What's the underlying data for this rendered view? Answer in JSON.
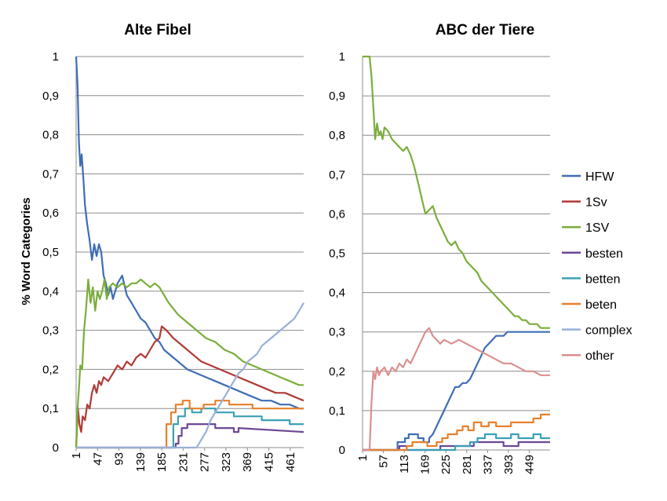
{
  "colors": {
    "HFW": "#3f6db5",
    "1Sv": "#b03a36",
    "1SV": "#7aae3a",
    "besten": "#6c4796",
    "betten": "#3ba0b5",
    "beten": "#e8802b",
    "complex": "#98b0d9",
    "other": "#dc8e8e"
  },
  "legend": [
    "HFW",
    "1Sv",
    "1SV",
    "besten",
    "betten",
    "beten",
    "complex",
    "other"
  ],
  "chart_data": [
    {
      "type": "line",
      "title": "Alte Fibel",
      "ylabel": "% Word Categories",
      "xlabel": "",
      "xlim": [
        1,
        490
      ],
      "ylim": [
        0,
        1
      ],
      "yticks": [
        "0",
        "0,1",
        "0,2",
        "0,3",
        "0,4",
        "0,5",
        "0,6",
        "0,7",
        "0,8",
        "0,9",
        "1"
      ],
      "xticks": [
        "1",
        "47",
        "93",
        "139",
        "185",
        "231",
        "277",
        "323",
        "369",
        "415",
        "461"
      ],
      "grid": true,
      "series": [
        {
          "name": "HFW",
          "x": [
            1,
            4,
            7,
            10,
            13,
            17,
            20,
            25,
            30,
            35,
            40,
            45,
            50,
            55,
            60,
            65,
            70,
            75,
            80,
            90,
            100,
            110,
            120,
            130,
            140,
            150,
            160,
            170,
            180,
            190,
            200,
            220,
            240,
            260,
            280,
            300,
            320,
            340,
            360,
            380,
            400,
            420,
            440,
            460,
            480,
            490
          ],
          "y": [
            1,
            0.93,
            0.78,
            0.72,
            0.75,
            0.68,
            0.62,
            0.57,
            0.53,
            0.48,
            0.52,
            0.49,
            0.52,
            0.5,
            0.44,
            0.42,
            0.39,
            0.41,
            0.38,
            0.42,
            0.44,
            0.39,
            0.37,
            0.35,
            0.33,
            0.32,
            0.3,
            0.28,
            0.27,
            0.25,
            0.24,
            0.22,
            0.2,
            0.19,
            0.18,
            0.17,
            0.16,
            0.15,
            0.14,
            0.13,
            0.12,
            0.12,
            0.11,
            0.11,
            0.1,
            0.1
          ]
        },
        {
          "name": "1Sv",
          "x": [
            1,
            5,
            8,
            12,
            15,
            20,
            25,
            30,
            35,
            40,
            45,
            50,
            55,
            60,
            70,
            80,
            90,
            100,
            110,
            120,
            130,
            140,
            150,
            160,
            170,
            180,
            185,
            195,
            210,
            230,
            250,
            270,
            290,
            310,
            330,
            350,
            370,
            390,
            410,
            430,
            450,
            470,
            490
          ],
          "y": [
            0,
            0.1,
            0.06,
            0.04,
            0.08,
            0.07,
            0.11,
            0.1,
            0.14,
            0.16,
            0.14,
            0.17,
            0.16,
            0.18,
            0.17,
            0.19,
            0.21,
            0.2,
            0.22,
            0.21,
            0.23,
            0.24,
            0.23,
            0.25,
            0.27,
            0.28,
            0.31,
            0.3,
            0.28,
            0.26,
            0.24,
            0.22,
            0.21,
            0.2,
            0.19,
            0.18,
            0.17,
            0.16,
            0.15,
            0.14,
            0.14,
            0.13,
            0.12
          ]
        },
        {
          "name": "1SV",
          "x": [
            1,
            4,
            7,
            10,
            14,
            18,
            22,
            27,
            32,
            37,
            42,
            47,
            52,
            57,
            62,
            67,
            72,
            80,
            90,
            100,
            110,
            120,
            130,
            140,
            150,
            160,
            170,
            180,
            190,
            200,
            220,
            240,
            260,
            280,
            300,
            320,
            340,
            360,
            380,
            400,
            420,
            440,
            460,
            480,
            490
          ],
          "y": [
            0,
            0.1,
            0.15,
            0.21,
            0.2,
            0.3,
            0.35,
            0.43,
            0.37,
            0.41,
            0.35,
            0.4,
            0.38,
            0.4,
            0.43,
            0.38,
            0.41,
            0.42,
            0.41,
            0.42,
            0.41,
            0.42,
            0.42,
            0.43,
            0.42,
            0.41,
            0.42,
            0.41,
            0.39,
            0.37,
            0.34,
            0.32,
            0.3,
            0.28,
            0.27,
            0.25,
            0.24,
            0.22,
            0.21,
            0.2,
            0.19,
            0.18,
            0.17,
            0.16,
            0.16
          ]
        },
        {
          "name": "besten",
          "x": [
            1,
            210,
            215,
            215,
            221,
            221,
            228,
            228,
            240,
            240,
            300,
            300,
            340,
            340,
            350,
            350,
            490
          ],
          "y": [
            0,
            0,
            0,
            0.01,
            0.01,
            0.03,
            0.03,
            0.05,
            0.05,
            0.06,
            0.06,
            0.05,
            0.05,
            0.04,
            0.04,
            0.05,
            0.04
          ]
        },
        {
          "name": "betten",
          "x": [
            1,
            205,
            210,
            210,
            220,
            220,
            235,
            235,
            250,
            250,
            270,
            270,
            300,
            300,
            340,
            340,
            360,
            360,
            400,
            400,
            430,
            430,
            460,
            460,
            490
          ],
          "y": [
            0,
            0,
            0,
            0.06,
            0.06,
            0.08,
            0.08,
            0.1,
            0.1,
            0.09,
            0.09,
            0.1,
            0.1,
            0.09,
            0.09,
            0.08,
            0.08,
            0.08,
            0.08,
            0.07,
            0.07,
            0.07,
            0.07,
            0.06,
            0.06
          ]
        },
        {
          "name": "beten",
          "x": [
            1,
            186,
            195,
            195,
            205,
            205,
            215,
            215,
            230,
            230,
            245,
            245,
            275,
            275,
            300,
            300,
            330,
            330,
            380,
            380,
            490
          ],
          "y": [
            0,
            0,
            0,
            0.06,
            0.06,
            0.09,
            0.09,
            0.11,
            0.11,
            0.12,
            0.12,
            0.1,
            0.1,
            0.11,
            0.11,
            0.12,
            0.12,
            0.11,
            0.11,
            0.1,
            0.1
          ]
        },
        {
          "name": "complex",
          "x": [
            1,
            260,
            270,
            280,
            290,
            300,
            310,
            320,
            330,
            340,
            350,
            360,
            370,
            380,
            390,
            400,
            410,
            420,
            430,
            440,
            450,
            460,
            470,
            480,
            490
          ],
          "y": [
            0,
            0,
            0.02,
            0.04,
            0.07,
            0.09,
            0.11,
            0.13,
            0.15,
            0.17,
            0.19,
            0.2,
            0.22,
            0.23,
            0.24,
            0.26,
            0.27,
            0.28,
            0.29,
            0.3,
            0.31,
            0.32,
            0.33,
            0.35,
            0.37
          ]
        }
      ]
    },
    {
      "type": "line",
      "title": "ABC der Tiere",
      "ylabel": "",
      "xlabel": "",
      "xlim": [
        1,
        505
      ],
      "ylim": [
        0,
        1
      ],
      "yticks": [
        "0",
        "0,1",
        "0,2",
        "0,3",
        "0,4",
        "0,5",
        "0,6",
        "0,7",
        "0,8",
        "0,9",
        "1"
      ],
      "xticks": [
        "1",
        "57",
        "113",
        "169",
        "225",
        "281",
        "337",
        "393",
        "449"
      ],
      "grid": true,
      "series": [
        {
          "name": "HFW",
          "x": [
            1,
            90,
            95,
            95,
            115,
            115,
            125,
            125,
            150,
            150,
            165,
            165,
            180,
            180,
            190,
            200,
            210,
            220,
            230,
            240,
            250,
            260,
            270,
            280,
            290,
            300,
            310,
            320,
            330,
            340,
            350,
            360,
            370,
            380,
            390,
            400,
            410,
            420,
            440,
            460,
            480,
            500,
            505
          ],
          "y": [
            0,
            0,
            0,
            0.02,
            0.02,
            0.03,
            0.03,
            0.04,
            0.04,
            0.03,
            0.03,
            0.02,
            0.02,
            0.03,
            0.04,
            0.06,
            0.08,
            0.1,
            0.12,
            0.14,
            0.16,
            0.16,
            0.17,
            0.17,
            0.18,
            0.2,
            0.22,
            0.24,
            0.26,
            0.27,
            0.28,
            0.29,
            0.29,
            0.29,
            0.3,
            0.3,
            0.3,
            0.3,
            0.3,
            0.3,
            0.3,
            0.3,
            0.3
          ]
        },
        {
          "name": "1SV",
          "x": [
            1,
            20,
            25,
            30,
            35,
            40,
            45,
            50,
            55,
            60,
            70,
            80,
            90,
            100,
            110,
            120,
            130,
            140,
            150,
            160,
            170,
            180,
            190,
            200,
            210,
            220,
            230,
            240,
            250,
            260,
            270,
            280,
            290,
            300,
            310,
            320,
            330,
            340,
            350,
            360,
            370,
            380,
            390,
            400,
            410,
            420,
            430,
            440,
            450,
            460,
            470,
            480,
            490,
            500,
            505
          ],
          "y": [
            1,
            1,
            0.95,
            0.87,
            0.79,
            0.83,
            0.8,
            0.81,
            0.79,
            0.82,
            0.81,
            0.79,
            0.78,
            0.77,
            0.76,
            0.77,
            0.75,
            0.72,
            0.68,
            0.64,
            0.6,
            0.61,
            0.62,
            0.59,
            0.57,
            0.55,
            0.53,
            0.52,
            0.53,
            0.51,
            0.5,
            0.48,
            0.47,
            0.46,
            0.45,
            0.43,
            0.42,
            0.41,
            0.4,
            0.39,
            0.38,
            0.37,
            0.36,
            0.35,
            0.34,
            0.34,
            0.33,
            0.33,
            0.32,
            0.32,
            0.32,
            0.31,
            0.31,
            0.31,
            0.31
          ]
        },
        {
          "name": "besten",
          "x": [
            1,
            100,
            100,
            120,
            120,
            210,
            210,
            300,
            300,
            380,
            380,
            420,
            420,
            505
          ],
          "y": [
            0,
            0,
            0.01,
            0.01,
            0,
            0,
            0.01,
            0.01,
            0.02,
            0.02,
            0.01,
            0.01,
            0.02,
            0.02
          ]
        },
        {
          "name": "betten",
          "x": [
            1,
            250,
            250,
            290,
            290,
            310,
            310,
            330,
            330,
            360,
            360,
            400,
            400,
            420,
            420,
            460,
            460,
            480,
            480,
            505
          ],
          "y": [
            0,
            0,
            0.01,
            0.01,
            0.02,
            0.02,
            0.03,
            0.03,
            0.04,
            0.04,
            0.03,
            0.03,
            0.04,
            0.04,
            0.03,
            0.03,
            0.04,
            0.04,
            0.03,
            0.03
          ]
        },
        {
          "name": "beten",
          "x": [
            1,
            120,
            120,
            135,
            135,
            175,
            175,
            200,
            200,
            215,
            215,
            230,
            230,
            255,
            255,
            270,
            270,
            285,
            285,
            300,
            300,
            320,
            320,
            340,
            340,
            360,
            360,
            400,
            400,
            460,
            460,
            480,
            480,
            505
          ],
          "y": [
            0,
            0,
            0.01,
            0.01,
            0.02,
            0.02,
            0.01,
            0.01,
            0.02,
            0.02,
            0.03,
            0.03,
            0.04,
            0.04,
            0.05,
            0.05,
            0.06,
            0.06,
            0.05,
            0.05,
            0.07,
            0.07,
            0.06,
            0.06,
            0.07,
            0.07,
            0.06,
            0.06,
            0.07,
            0.07,
            0.08,
            0.08,
            0.09,
            0.09
          ]
        },
        {
          "name": "other",
          "x": [
            1,
            20,
            25,
            30,
            35,
            40,
            45,
            50,
            60,
            70,
            80,
            90,
            100,
            110,
            120,
            130,
            140,
            150,
            160,
            170,
            180,
            190,
            200,
            210,
            220,
            240,
            260,
            280,
            300,
            320,
            340,
            360,
            380,
            400,
            420,
            440,
            460,
            480,
            505
          ],
          "y": [
            0,
            0,
            0.12,
            0.2,
            0.18,
            0.21,
            0.19,
            0.2,
            0.21,
            0.19,
            0.21,
            0.2,
            0.22,
            0.21,
            0.23,
            0.22,
            0.24,
            0.26,
            0.28,
            0.3,
            0.31,
            0.29,
            0.28,
            0.27,
            0.28,
            0.27,
            0.28,
            0.27,
            0.26,
            0.25,
            0.24,
            0.23,
            0.22,
            0.22,
            0.21,
            0.2,
            0.2,
            0.19,
            0.19
          ]
        }
      ]
    }
  ]
}
